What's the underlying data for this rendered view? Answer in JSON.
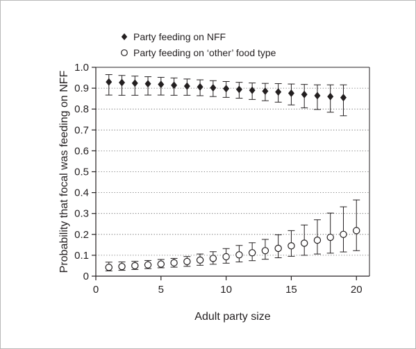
{
  "chart_data": {
    "type": "scatter",
    "title": "",
    "xlabel": "Adult party size",
    "ylabel": "Probability that focal was feeding on NFF",
    "xlim": [
      0,
      21
    ],
    "ylim": [
      0,
      1.0
    ],
    "xticks": [
      0,
      5,
      10,
      15,
      20
    ],
    "yticks": [
      0,
      0.1,
      0.2,
      0.3,
      0.4,
      0.5,
      0.6,
      0.7,
      0.8,
      0.9,
      1.0
    ],
    "ytick_labels": [
      "0",
      "0.1",
      "0.2",
      "0.3",
      "0.4",
      "0.5",
      "0.6",
      "0.7",
      "0.8",
      "0.9",
      "1.0"
    ],
    "grid": "horizontal dotted",
    "legend_position": "top-left",
    "series": [
      {
        "name": "Party feeding on NFF",
        "marker": "diamond-filled",
        "x": [
          1,
          2,
          3,
          4,
          5,
          6,
          7,
          8,
          9,
          10,
          11,
          12,
          13,
          14,
          15,
          16,
          17,
          18,
          19
        ],
        "y": [
          0.93,
          0.927,
          0.924,
          0.921,
          0.918,
          0.914,
          0.91,
          0.906,
          0.902,
          0.898,
          0.894,
          0.89,
          0.886,
          0.882,
          0.876,
          0.87,
          0.864,
          0.86,
          0.855
        ],
        "lower": [
          0.867,
          0.866,
          0.866,
          0.867,
          0.867,
          0.866,
          0.866,
          0.864,
          0.86,
          0.856,
          0.852,
          0.846,
          0.84,
          0.833,
          0.82,
          0.806,
          0.798,
          0.785,
          0.768
        ],
        "upper": [
          0.965,
          0.961,
          0.958,
          0.955,
          0.952,
          0.949,
          0.944,
          0.94,
          0.936,
          0.932,
          0.928,
          0.925,
          0.923,
          0.922,
          0.92,
          0.918,
          0.916,
          0.916,
          0.916
        ]
      },
      {
        "name": "Party feeding on ‘other’ food type",
        "marker": "circle-open",
        "x": [
          1,
          2,
          3,
          4,
          5,
          6,
          7,
          8,
          9,
          10,
          11,
          12,
          13,
          14,
          15,
          16,
          17,
          18,
          19,
          20
        ],
        "y": [
          0.042,
          0.046,
          0.05,
          0.054,
          0.058,
          0.064,
          0.07,
          0.077,
          0.085,
          0.093,
          0.102,
          0.112,
          0.122,
          0.133,
          0.145,
          0.158,
          0.172,
          0.186,
          0.2,
          0.218
        ],
        "lower": [
          0.025,
          0.028,
          0.032,
          0.036,
          0.04,
          0.043,
          0.047,
          0.052,
          0.057,
          0.062,
          0.068,
          0.074,
          0.081,
          0.088,
          0.095,
          0.1,
          0.106,
          0.11,
          0.116,
          0.122
        ],
        "upper": [
          0.067,
          0.068,
          0.071,
          0.075,
          0.08,
          0.085,
          0.094,
          0.106,
          0.117,
          0.132,
          0.147,
          0.16,
          0.176,
          0.198,
          0.218,
          0.245,
          0.27,
          0.302,
          0.332,
          0.365
        ]
      }
    ]
  }
}
